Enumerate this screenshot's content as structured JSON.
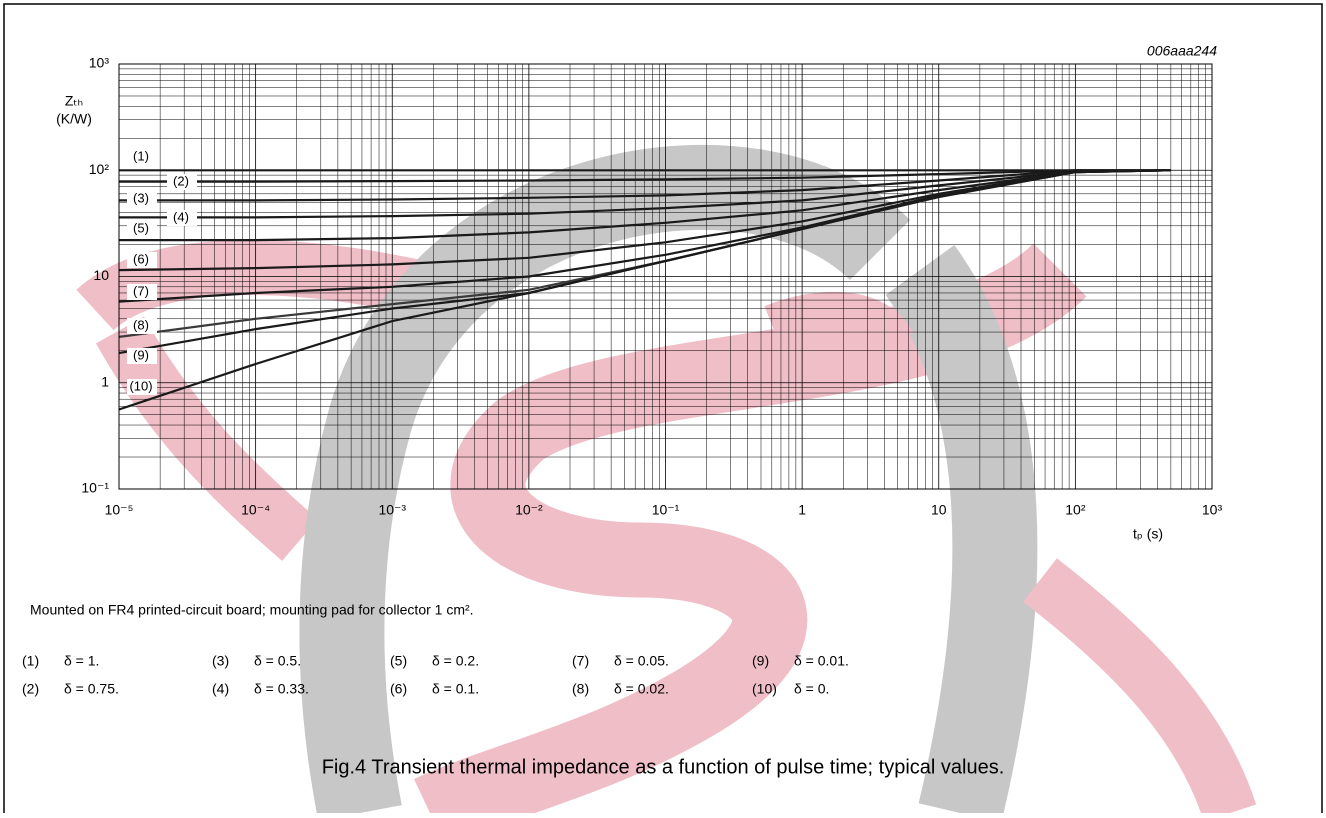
{
  "chart_data": {
    "type": "line",
    "log_x": true,
    "log_y": true,
    "grid": true,
    "minor_grid": true,
    "code": "006aaa244",
    "y_label_lines": [
      "Zₜₕ",
      "(K/W)"
    ],
    "x_label": "tₚ (s)",
    "note": "Mounted on FR4 printed-circuit board; mounting pad for collector 1 cm².",
    "caption": "Fig.4  Transient thermal impedance as a function of pulse time; typical values.",
    "xlim": [
      1e-05,
      1000
    ],
    "ylim": [
      0.1,
      1000
    ],
    "xticks": [
      {
        "value": 1e-05,
        "label": "10⁻⁵"
      },
      {
        "value": 0.0001,
        "label": "10⁻⁴"
      },
      {
        "value": 0.001,
        "label": "10⁻³"
      },
      {
        "value": 0.01,
        "label": "10⁻²"
      },
      {
        "value": 0.1,
        "label": "10⁻¹"
      },
      1,
      10,
      {
        "value": 100,
        "label": "10²"
      },
      {
        "value": 1000,
        "label": "10³"
      }
    ],
    "yticks": [
      {
        "value": 0.1,
        "label": "10⁻¹"
      },
      1,
      10,
      {
        "value": 100,
        "label": "10²"
      },
      {
        "value": 1000,
        "label": "10³"
      }
    ],
    "x": [
      1e-05,
      0.0001,
      0.001,
      0.01,
      0.1,
      1,
      10,
      100,
      500
    ],
    "series": [
      {
        "name": "(1)",
        "description": "δ = 1.",
        "color": "#1a1a1a",
        "values": [
          100,
          100,
          100,
          100,
          100,
          100,
          100,
          100,
          100
        ]
      },
      {
        "name": "(2)",
        "description": "δ = 0.75.",
        "color": "#1a1a1a",
        "values": [
          78,
          78,
          79,
          80,
          82,
          85,
          92,
          100,
          100
        ]
      },
      {
        "name": "(3)",
        "description": "δ = 0.5.",
        "color": "#1a1a1a",
        "values": [
          52,
          52,
          53,
          55,
          58,
          65,
          80,
          100,
          100
        ]
      },
      {
        "name": "(4)",
        "description": "δ = 0.33.",
        "color": "#1a1a1a",
        "values": [
          36,
          36,
          37,
          39,
          44,
          52,
          72,
          98,
          100
        ]
      },
      {
        "name": "(5)",
        "description": "δ = 0.2.",
        "color": "#1a1a1a",
        "values": [
          22,
          22,
          23,
          26,
          32,
          42,
          65,
          97,
          100
        ]
      },
      {
        "name": "(6)",
        "description": "δ = 0.1.",
        "color": "#1a1a1a",
        "values": [
          11.5,
          12,
          13,
          15,
          21,
          33,
          60,
          97,
          100
        ]
      },
      {
        "name": "(7)",
        "description": "δ = 0.05.",
        "color": "#1a1a1a",
        "values": [
          5.8,
          7,
          8,
          10,
          16,
          29,
          58,
          96,
          100
        ]
      },
      {
        "name": "(8)",
        "description": "δ = 0.02.",
        "color": "#3a3a3a",
        "values": [
          2.7,
          4,
          5.5,
          7.5,
          14,
          28,
          57,
          96,
          100
        ]
      },
      {
        "name": "(9)",
        "description": "δ = 0.01.",
        "color": "#1a1a1a",
        "values": [
          1.9,
          3.2,
          5,
          7,
          14,
          28,
          57,
          96,
          100
        ]
      },
      {
        "name": "(10)",
        "description": "δ = 0.",
        "color": "#1a1a1a",
        "values": [
          0.56,
          1.5,
          3.8,
          7,
          14,
          28,
          56,
          96,
          100
        ]
      }
    ]
  }
}
